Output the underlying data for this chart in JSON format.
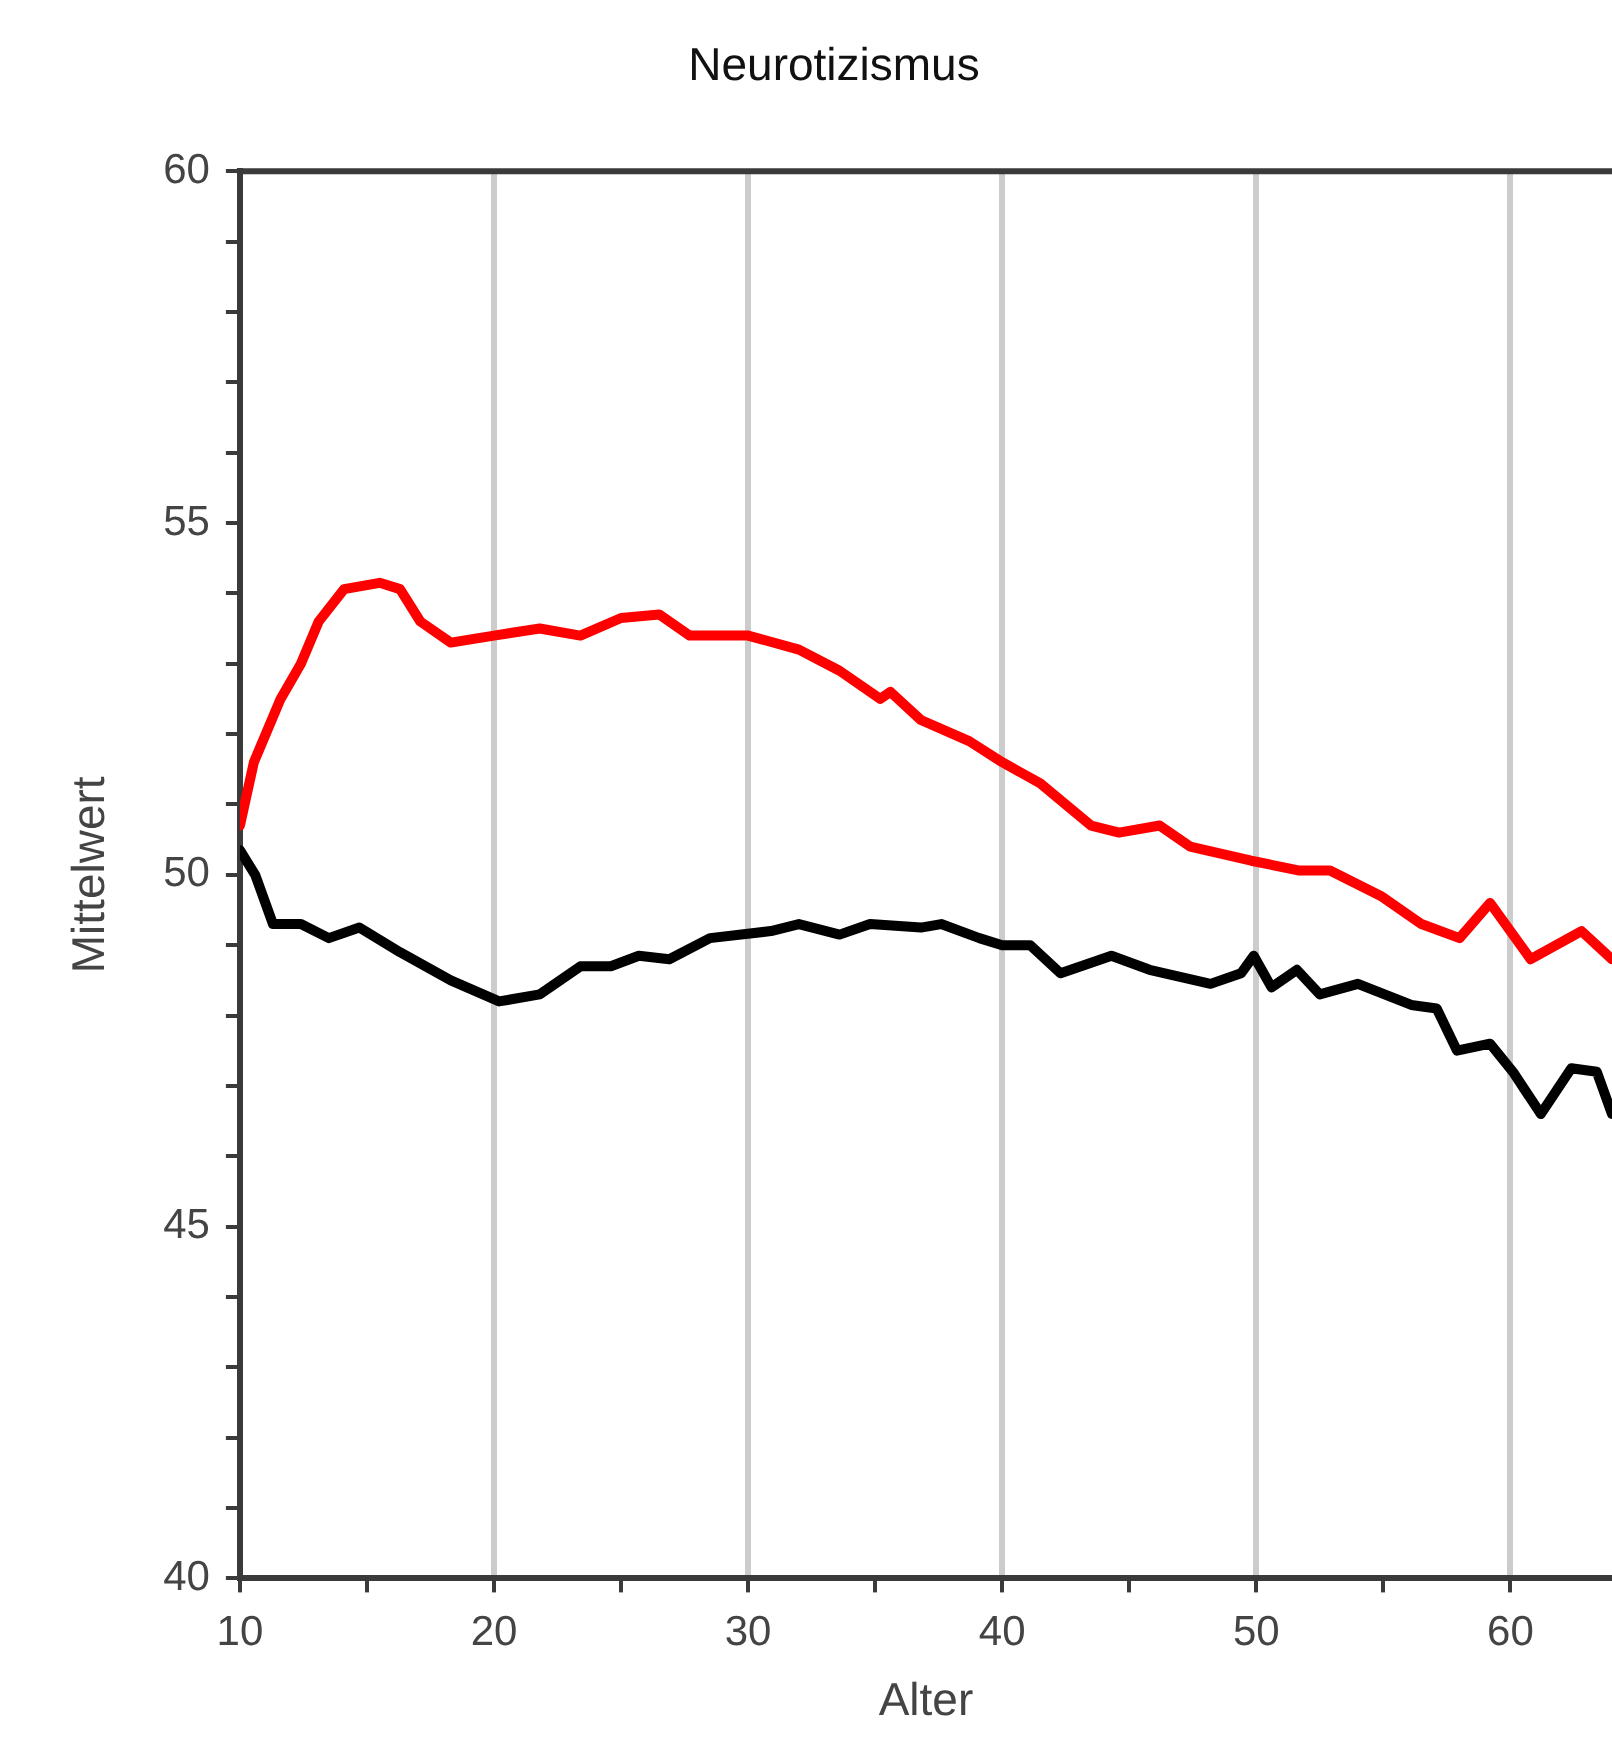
{
  "chart_data": {
    "type": "line",
    "title": "Neurotizismus",
    "xlabel": "Alter",
    "ylabel": "Mittelwert",
    "xlim": [
      10,
      64
    ],
    "xticks": [
      10,
      {
        "value": 15,
        "label": null
      },
      20,
      {
        "value": 25,
        "label": null
      },
      30,
      {
        "value": 35,
        "label": null
      },
      40,
      {
        "value": 45,
        "label": null
      },
      50,
      {
        "value": 55,
        "label": null
      },
      60
    ],
    "ylim": [
      40,
      60
    ],
    "yticks": [
      40,
      {
        "value": 41,
        "label": null
      },
      {
        "value": 42,
        "label": null
      },
      {
        "value": 43,
        "label": null
      },
      {
        "value": 44,
        "label": null
      },
      45,
      {
        "value": 46,
        "label": null
      },
      {
        "value": 47,
        "label": null
      },
      {
        "value": 48,
        "label": null
      },
      {
        "value": 49,
        "label": null
      },
      50,
      {
        "value": 51,
        "label": null
      },
      {
        "value": 52,
        "label": null
      },
      {
        "value": 53,
        "label": null
      },
      {
        "value": 54,
        "label": null
      },
      55,
      {
        "value": 56,
        "label": null
      },
      {
        "value": 57,
        "label": null
      },
      {
        "value": 58,
        "label": null
      },
      {
        "value": 59,
        "label": null
      },
      60
    ],
    "grid": "x",
    "legend": false,
    "marker": "none",
    "line_style": "solid",
    "series": [
      {
        "color": "#ff0000",
        "x": [
          10,
          10.55,
          11.6,
          12.4,
          13.1,
          14.1,
          15.5,
          16.3,
          17.1,
          18.3,
          20,
          21.8,
          23.4,
          25,
          26.5,
          27.7,
          30,
          32,
          33.6,
          35.2,
          35.6,
          36.8,
          38.7,
          40,
          41.5,
          43.5,
          44.6,
          46.2,
          47.4,
          49.8,
          51.7,
          52.9,
          54.9,
          56.5,
          58,
          59.2,
          60.8,
          62.8,
          64
        ],
        "values": [
          50.7,
          51.6,
          52.5,
          53,
          53.6,
          54.06,
          54.15,
          54.06,
          53.6,
          53.3,
          53.4,
          53.5,
          53.4,
          53.65,
          53.7,
          53.4,
          53.4,
          53.2,
          52.9,
          52.5,
          52.6,
          52.2,
          51.9,
          51.6,
          51.3,
          50.7,
          50.6,
          50.7,
          50.4,
          50.2,
          50.06,
          50.06,
          49.7,
          49.3,
          49.1,
          49.6,
          48.8,
          49.2,
          48.8
        ]
      },
      {
        "color": "#000000",
        "x": [
          10,
          10.6,
          11.3,
          12.4,
          13.5,
          14.7,
          16.3,
          18.3,
          20.2,
          21.8,
          23.4,
          24.6,
          25.7,
          26.9,
          28.5,
          30.9,
          32,
          33.6,
          34.8,
          36.8,
          37.6,
          39.1,
          40,
          41.1,
          42.3,
          44.3,
          45.8,
          48.2,
          49.4,
          49.9,
          50.6,
          51.6,
          52.5,
          54,
          56.1,
          57.1,
          57.9,
          59.2,
          60.1,
          61.2,
          62.4,
          63.4,
          64
        ],
        "values": [
          50.35,
          50,
          49.3,
          49.3,
          49.1,
          49.25,
          48.9,
          48.5,
          48.2,
          48.3,
          48.7,
          48.7,
          48.85,
          48.8,
          49.1,
          49.2,
          49.3,
          49.15,
          49.3,
          49.25,
          49.3,
          49.1,
          49,
          49,
          48.6,
          48.85,
          48.65,
          48.45,
          48.6,
          48.85,
          48.4,
          48.65,
          48.3,
          48.45,
          48.15,
          48.1,
          47.5,
          47.6,
          47.2,
          46.6,
          47.25,
          47.2,
          46.6
        ]
      }
    ]
  }
}
